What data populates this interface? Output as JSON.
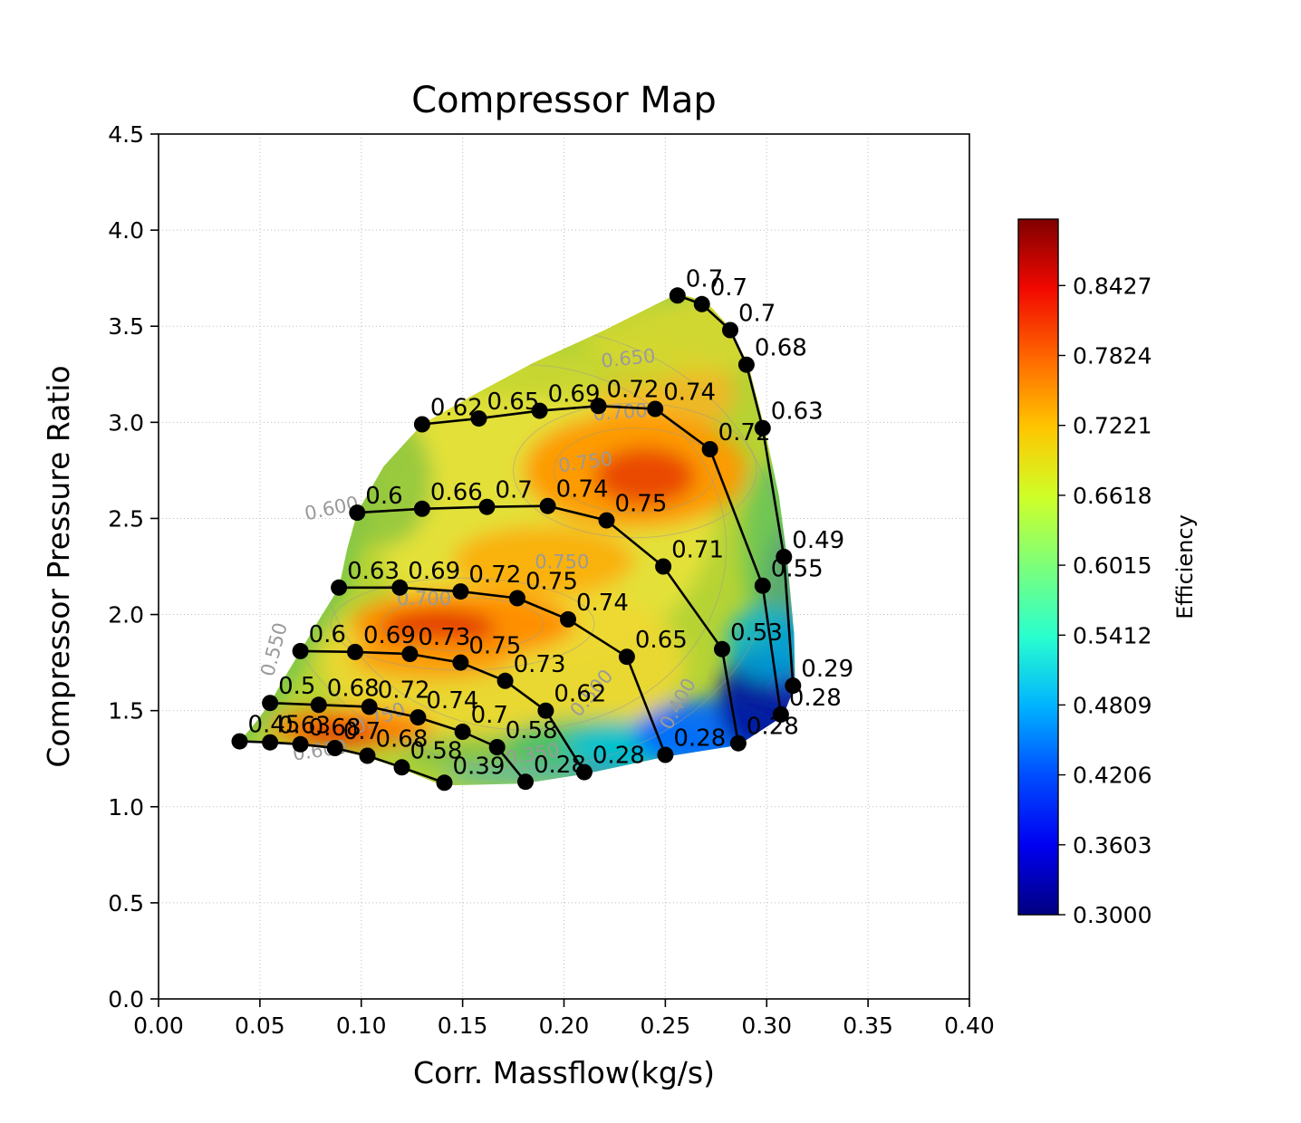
{
  "chart_data": {
    "type": "contour",
    "title": "Compressor Map",
    "xlabel": "Corr. Massflow(kg/s)",
    "ylabel": "Compressor Pressure Ratio",
    "xlim": [
      0.0,
      0.4
    ],
    "ylim": [
      0.0,
      4.5
    ],
    "x_ticks": [
      0,
      0.05,
      0.1,
      0.15,
      0.2,
      0.25,
      0.3,
      0.35,
      0.4
    ],
    "x_tick_labels": [
      "0.00",
      "0.05",
      "0.10",
      "0.15",
      "0.20",
      "0.25",
      "0.30",
      "0.35",
      "0.40"
    ],
    "y_ticks": [
      0,
      0.5,
      1.0,
      1.5,
      2.0,
      2.5,
      3.0,
      3.5,
      4.0,
      4.5
    ],
    "y_tick_labels": [
      "0.0",
      "0.5",
      "1.0",
      "1.5",
      "2.0",
      "2.5",
      "3.0",
      "3.5",
      "4.0",
      "4.5"
    ],
    "grid": "dotted",
    "colorbar": {
      "label": "Efficiency",
      "tick_labels": [
        "0.8427",
        "0.7824",
        "0.7221",
        "0.6618",
        "0.6015",
        "0.5412",
        "0.4809",
        "0.4206",
        "0.3603",
        "0.3000"
      ],
      "vmin": 0.3,
      "vmax": 0.9,
      "colormap": "jet",
      "gradient": [
        [
          0.0,
          "#000080"
        ],
        [
          0.1,
          "#0000f1"
        ],
        [
          0.2,
          "#004cff"
        ],
        [
          0.3,
          "#00b3ff"
        ],
        [
          0.4,
          "#29ffce"
        ],
        [
          0.5,
          "#7bff7b"
        ],
        [
          0.6,
          "#ceff29"
        ],
        [
          0.7,
          "#ffc600"
        ],
        [
          0.8,
          "#ff6800"
        ],
        [
          0.9,
          "#f10800"
        ],
        [
          1.0,
          "#800000"
        ]
      ]
    },
    "speed_lines": [
      {
        "points": [
          {
            "x": 0.04,
            "y": 1.34,
            "eff": "0.45"
          },
          {
            "x": 0.055,
            "y": 1.335,
            "eff": "0.63"
          },
          {
            "x": 0.07,
            "y": 1.325,
            "eff": "0.68"
          },
          {
            "x": 0.087,
            "y": 1.305,
            "eff": "0.7"
          },
          {
            "x": 0.103,
            "y": 1.265,
            "eff": "0.68"
          },
          {
            "x": 0.12,
            "y": 1.205,
            "eff": "0.58"
          },
          {
            "x": 0.141,
            "y": 1.125,
            "eff": "0.39"
          }
        ]
      },
      {
        "points": [
          {
            "x": 0.055,
            "y": 1.54,
            "eff": "0.5"
          },
          {
            "x": 0.079,
            "y": 1.53,
            "eff": "0.68"
          },
          {
            "x": 0.104,
            "y": 1.52,
            "eff": "0.72"
          },
          {
            "x": 0.128,
            "y": 1.465,
            "eff": "0.74"
          },
          {
            "x": 0.15,
            "y": 1.39,
            "eff": "0.7"
          },
          {
            "x": 0.167,
            "y": 1.31,
            "eff": "0.58"
          },
          {
            "x": 0.181,
            "y": 1.13,
            "eff": "0.28"
          }
        ]
      },
      {
        "points": [
          {
            "x": 0.07,
            "y": 1.81,
            "eff": "0.6"
          },
          {
            "x": 0.097,
            "y": 1.805,
            "eff": "0.69"
          },
          {
            "x": 0.124,
            "y": 1.795,
            "eff": "0.73"
          },
          {
            "x": 0.149,
            "y": 1.75,
            "eff": "0.75"
          },
          {
            "x": 0.171,
            "y": 1.655,
            "eff": "0.73"
          },
          {
            "x": 0.191,
            "y": 1.5,
            "eff": "0.62"
          },
          {
            "x": 0.21,
            "y": 1.18,
            "eff": "0.28"
          }
        ]
      },
      {
        "points": [
          {
            "x": 0.089,
            "y": 2.14,
            "eff": "0.63"
          },
          {
            "x": 0.119,
            "y": 2.14,
            "eff": "0.69"
          },
          {
            "x": 0.149,
            "y": 2.12,
            "eff": "0.72"
          },
          {
            "x": 0.177,
            "y": 2.085,
            "eff": "0.75"
          },
          {
            "x": 0.202,
            "y": 1.975,
            "eff": "0.74"
          },
          {
            "x": 0.231,
            "y": 1.78,
            "eff": "0.65"
          },
          {
            "x": 0.25,
            "y": 1.27,
            "eff": "0.28"
          }
        ]
      },
      {
        "points": [
          {
            "x": 0.098,
            "y": 2.53,
            "eff": "0.6"
          },
          {
            "x": 0.13,
            "y": 2.55,
            "eff": "0.66"
          },
          {
            "x": 0.162,
            "y": 2.56,
            "eff": "0.7"
          },
          {
            "x": 0.192,
            "y": 2.565,
            "eff": "0.74"
          },
          {
            "x": 0.221,
            "y": 2.49,
            "eff": "0.75"
          },
          {
            "x": 0.249,
            "y": 2.25,
            "eff": "0.71"
          },
          {
            "x": 0.278,
            "y": 1.82,
            "eff": "0.53"
          },
          {
            "x": 0.286,
            "y": 1.33,
            "eff": "0.28"
          }
        ]
      },
      {
        "points": [
          {
            "x": 0.13,
            "y": 2.99,
            "eff": "0.62"
          },
          {
            "x": 0.158,
            "y": 3.02,
            "eff": "0.65"
          },
          {
            "x": 0.188,
            "y": 3.06,
            "eff": "0.69"
          },
          {
            "x": 0.217,
            "y": 3.085,
            "eff": "0.72"
          },
          {
            "x": 0.245,
            "y": 3.07,
            "eff": "0.74"
          },
          {
            "x": 0.272,
            "y": 2.86,
            "eff": "0.72"
          },
          {
            "x": 0.298,
            "y": 2.15,
            "eff": "0.55"
          },
          {
            "x": 0.307,
            "y": 1.48,
            "eff": "0.28"
          }
        ]
      },
      {
        "points": [
          {
            "x": 0.256,
            "y": 3.66,
            "eff": "0.7"
          },
          {
            "x": 0.268,
            "y": 3.615,
            "eff": "0.7"
          },
          {
            "x": 0.282,
            "y": 3.48,
            "eff": "0.7"
          },
          {
            "x": 0.29,
            "y": 3.3,
            "eff": "0.68"
          },
          {
            "x": 0.298,
            "y": 2.97,
            "eff": "0.63"
          },
          {
            "x": 0.3085,
            "y": 2.3,
            "eff": "0.49"
          },
          {
            "x": 0.313,
            "y": 1.63,
            "eff": "0.29"
          }
        ]
      }
    ],
    "contour_line_labels": [
      {
        "x": 0.232,
        "y": 3.3,
        "text": "0.650",
        "rot": -6
      },
      {
        "x": 0.228,
        "y": 3.02,
        "text": "0.700",
        "rot": -4
      },
      {
        "x": 0.211,
        "y": 2.76,
        "text": "0.750",
        "rot": -8
      },
      {
        "x": 0.199,
        "y": 2.24,
        "text": "0.750",
        "rot": 0
      },
      {
        "x": 0.131,
        "y": 2.05,
        "text": "0.700",
        "rot": 0
      },
      {
        "x": 0.086,
        "y": 2.52,
        "text": "0.600",
        "rot": -12
      },
      {
        "x": 0.06,
        "y": 1.81,
        "text": "0.550",
        "rot": -75
      },
      {
        "x": 0.11,
        "y": 1.43,
        "text": "0.750",
        "rot": -22
      },
      {
        "x": 0.08,
        "y": 1.26,
        "text": "0.600",
        "rot": -8
      },
      {
        "x": 0.216,
        "y": 1.57,
        "text": "0.500",
        "rot": -50
      },
      {
        "x": 0.185,
        "y": 1.24,
        "text": "0.350",
        "rot": -10
      },
      {
        "x": 0.259,
        "y": 1.52,
        "text": "0.400",
        "rot": -62
      }
    ],
    "region_boundary": [
      [
        0.04,
        1.34
      ],
      [
        0.048,
        1.44
      ],
      [
        0.055,
        1.54
      ],
      [
        0.062,
        1.67
      ],
      [
        0.07,
        1.81
      ],
      [
        0.079,
        1.97
      ],
      [
        0.089,
        2.14
      ],
      [
        0.093,
        2.34
      ],
      [
        0.098,
        2.53
      ],
      [
        0.111,
        2.77
      ],
      [
        0.13,
        2.99
      ],
      [
        0.155,
        3.14
      ],
      [
        0.185,
        3.31
      ],
      [
        0.22,
        3.48
      ],
      [
        0.256,
        3.67
      ],
      [
        0.27,
        3.63
      ],
      [
        0.282,
        3.49
      ],
      [
        0.291,
        3.3
      ],
      [
        0.299,
        2.97
      ],
      [
        0.306,
        2.62
      ],
      [
        0.31,
        2.3
      ],
      [
        0.3135,
        1.9
      ],
      [
        0.314,
        1.63
      ],
      [
        0.308,
        1.47
      ],
      [
        0.286,
        1.32
      ],
      [
        0.25,
        1.26
      ],
      [
        0.21,
        1.17
      ],
      [
        0.18,
        1.12
      ],
      [
        0.14,
        1.11
      ],
      [
        0.119,
        1.2
      ],
      [
        0.102,
        1.26
      ],
      [
        0.086,
        1.3
      ],
      [
        0.068,
        1.32
      ],
      [
        0.053,
        1.33
      ]
    ],
    "efficiency_field": {
      "base_color": "#b5d334",
      "blobs": [
        {
          "x": 0.19,
          "y": 2.55,
          "rx": 0.085,
          "ry": 0.8,
          "color": "#e6e23a",
          "opacity": 0.95
        },
        {
          "x": 0.17,
          "y": 1.75,
          "rx": 0.09,
          "ry": 0.45,
          "color": "#eed832",
          "opacity": 0.9
        },
        {
          "x": 0.25,
          "y": 3.15,
          "rx": 0.035,
          "ry": 0.22,
          "color": "#ffb020",
          "opacity": 0.75
        },
        {
          "x": 0.235,
          "y": 2.75,
          "rx": 0.055,
          "ry": 0.3,
          "color": "#ff9800",
          "opacity": 0.95
        },
        {
          "x": 0.24,
          "y": 2.72,
          "rx": 0.025,
          "ry": 0.15,
          "color": "#e63c00",
          "opacity": 0.85
        },
        {
          "x": 0.19,
          "y": 2.28,
          "rx": 0.045,
          "ry": 0.18,
          "color": "#ffa600",
          "opacity": 0.8
        },
        {
          "x": 0.15,
          "y": 1.95,
          "rx": 0.055,
          "ry": 0.17,
          "color": "#ff8c00",
          "opacity": 0.95
        },
        {
          "x": 0.138,
          "y": 1.93,
          "rx": 0.028,
          "ry": 0.09,
          "color": "#dd2500",
          "opacity": 0.9
        },
        {
          "x": 0.135,
          "y": 1.78,
          "rx": 0.04,
          "ry": 0.12,
          "color": "#ff9000",
          "opacity": 0.75
        },
        {
          "x": 0.095,
          "y": 1.41,
          "rx": 0.04,
          "ry": 0.1,
          "color": "#ff7800",
          "opacity": 0.9
        },
        {
          "x": 0.088,
          "y": 1.38,
          "rx": 0.02,
          "ry": 0.05,
          "color": "#e02800",
          "opacity": 0.85
        },
        {
          "x": 0.11,
          "y": 2.7,
          "rx": 0.025,
          "ry": 0.35,
          "color": "#8cc63f",
          "opacity": 0.85
        },
        {
          "x": 0.17,
          "y": 3.3,
          "rx": 0.09,
          "ry": 0.18,
          "color": "#c2d531",
          "opacity": 0.8
        },
        {
          "x": 0.26,
          "y": 3.45,
          "rx": 0.05,
          "ry": 0.2,
          "color": "#d8d82e",
          "opacity": 0.8
        },
        {
          "x": 0.17,
          "y": 1.28,
          "rx": 0.05,
          "ry": 0.1,
          "color": "#7cc24a",
          "opacity": 0.8
        },
        {
          "x": 0.215,
          "y": 1.33,
          "rx": 0.045,
          "ry": 0.13,
          "color": "#3fbf6f",
          "opacity": 0.85
        },
        {
          "x": 0.24,
          "y": 1.32,
          "rx": 0.04,
          "ry": 0.12,
          "color": "#00c2d8",
          "opacity": 0.9
        },
        {
          "x": 0.27,
          "y": 1.38,
          "rx": 0.035,
          "ry": 0.18,
          "color": "#0068ff",
          "opacity": 0.92
        },
        {
          "x": 0.298,
          "y": 1.55,
          "rx": 0.022,
          "ry": 0.28,
          "color": "#0018a0",
          "opacity": 0.95
        },
        {
          "x": 0.309,
          "y": 2.0,
          "rx": 0.012,
          "ry": 0.45,
          "color": "#2a46c8",
          "opacity": 0.6
        },
        {
          "x": 0.303,
          "y": 2.35,
          "rx": 0.015,
          "ry": 0.45,
          "color": "#55c060",
          "opacity": 0.7
        },
        {
          "x": 0.3,
          "y": 1.85,
          "rx": 0.02,
          "ry": 0.2,
          "color": "#00b0d8",
          "opacity": 0.8
        },
        {
          "x": 0.19,
          "y": 1.16,
          "rx": 0.05,
          "ry": 0.05,
          "color": "#30b0d0",
          "opacity": 0.7
        }
      ],
      "rims": [
        {
          "points": [
            [
              0.04,
              1.34
            ],
            [
              0.055,
              1.54
            ],
            [
              0.07,
              1.81
            ],
            [
              0.089,
              2.14
            ],
            [
              0.098,
              2.53
            ],
            [
              0.13,
              2.99
            ],
            [
              0.185,
              3.31
            ],
            [
              0.256,
              3.67
            ]
          ],
          "color": "#5abf55",
          "width": 16,
          "opacity": 0.85
        },
        {
          "points": [
            [
              0.21,
              1.17
            ],
            [
              0.25,
              1.26
            ],
            [
              0.286,
              1.32
            ],
            [
              0.308,
              1.47
            ],
            [
              0.314,
              1.63
            ],
            [
              0.312,
              1.95
            ]
          ],
          "color": "#0a28b4",
          "width": 16,
          "opacity": 0.95
        }
      ]
    },
    "contour_rings": [
      {
        "x": 0.235,
        "y": 2.75,
        "rx": 0.06,
        "ry": 0.35
      },
      {
        "x": 0.235,
        "y": 2.75,
        "rx": 0.04,
        "ry": 0.22
      },
      {
        "x": 0.15,
        "y": 1.95,
        "rx": 0.065,
        "ry": 0.24
      },
      {
        "x": 0.15,
        "y": 1.95,
        "rx": 0.04,
        "ry": 0.14
      },
      {
        "x": 0.18,
        "y": 2.35,
        "rx": 0.1,
        "ry": 0.95
      },
      {
        "x": 0.18,
        "y": 2.35,
        "rx": 0.125,
        "ry": 1.15
      }
    ]
  }
}
